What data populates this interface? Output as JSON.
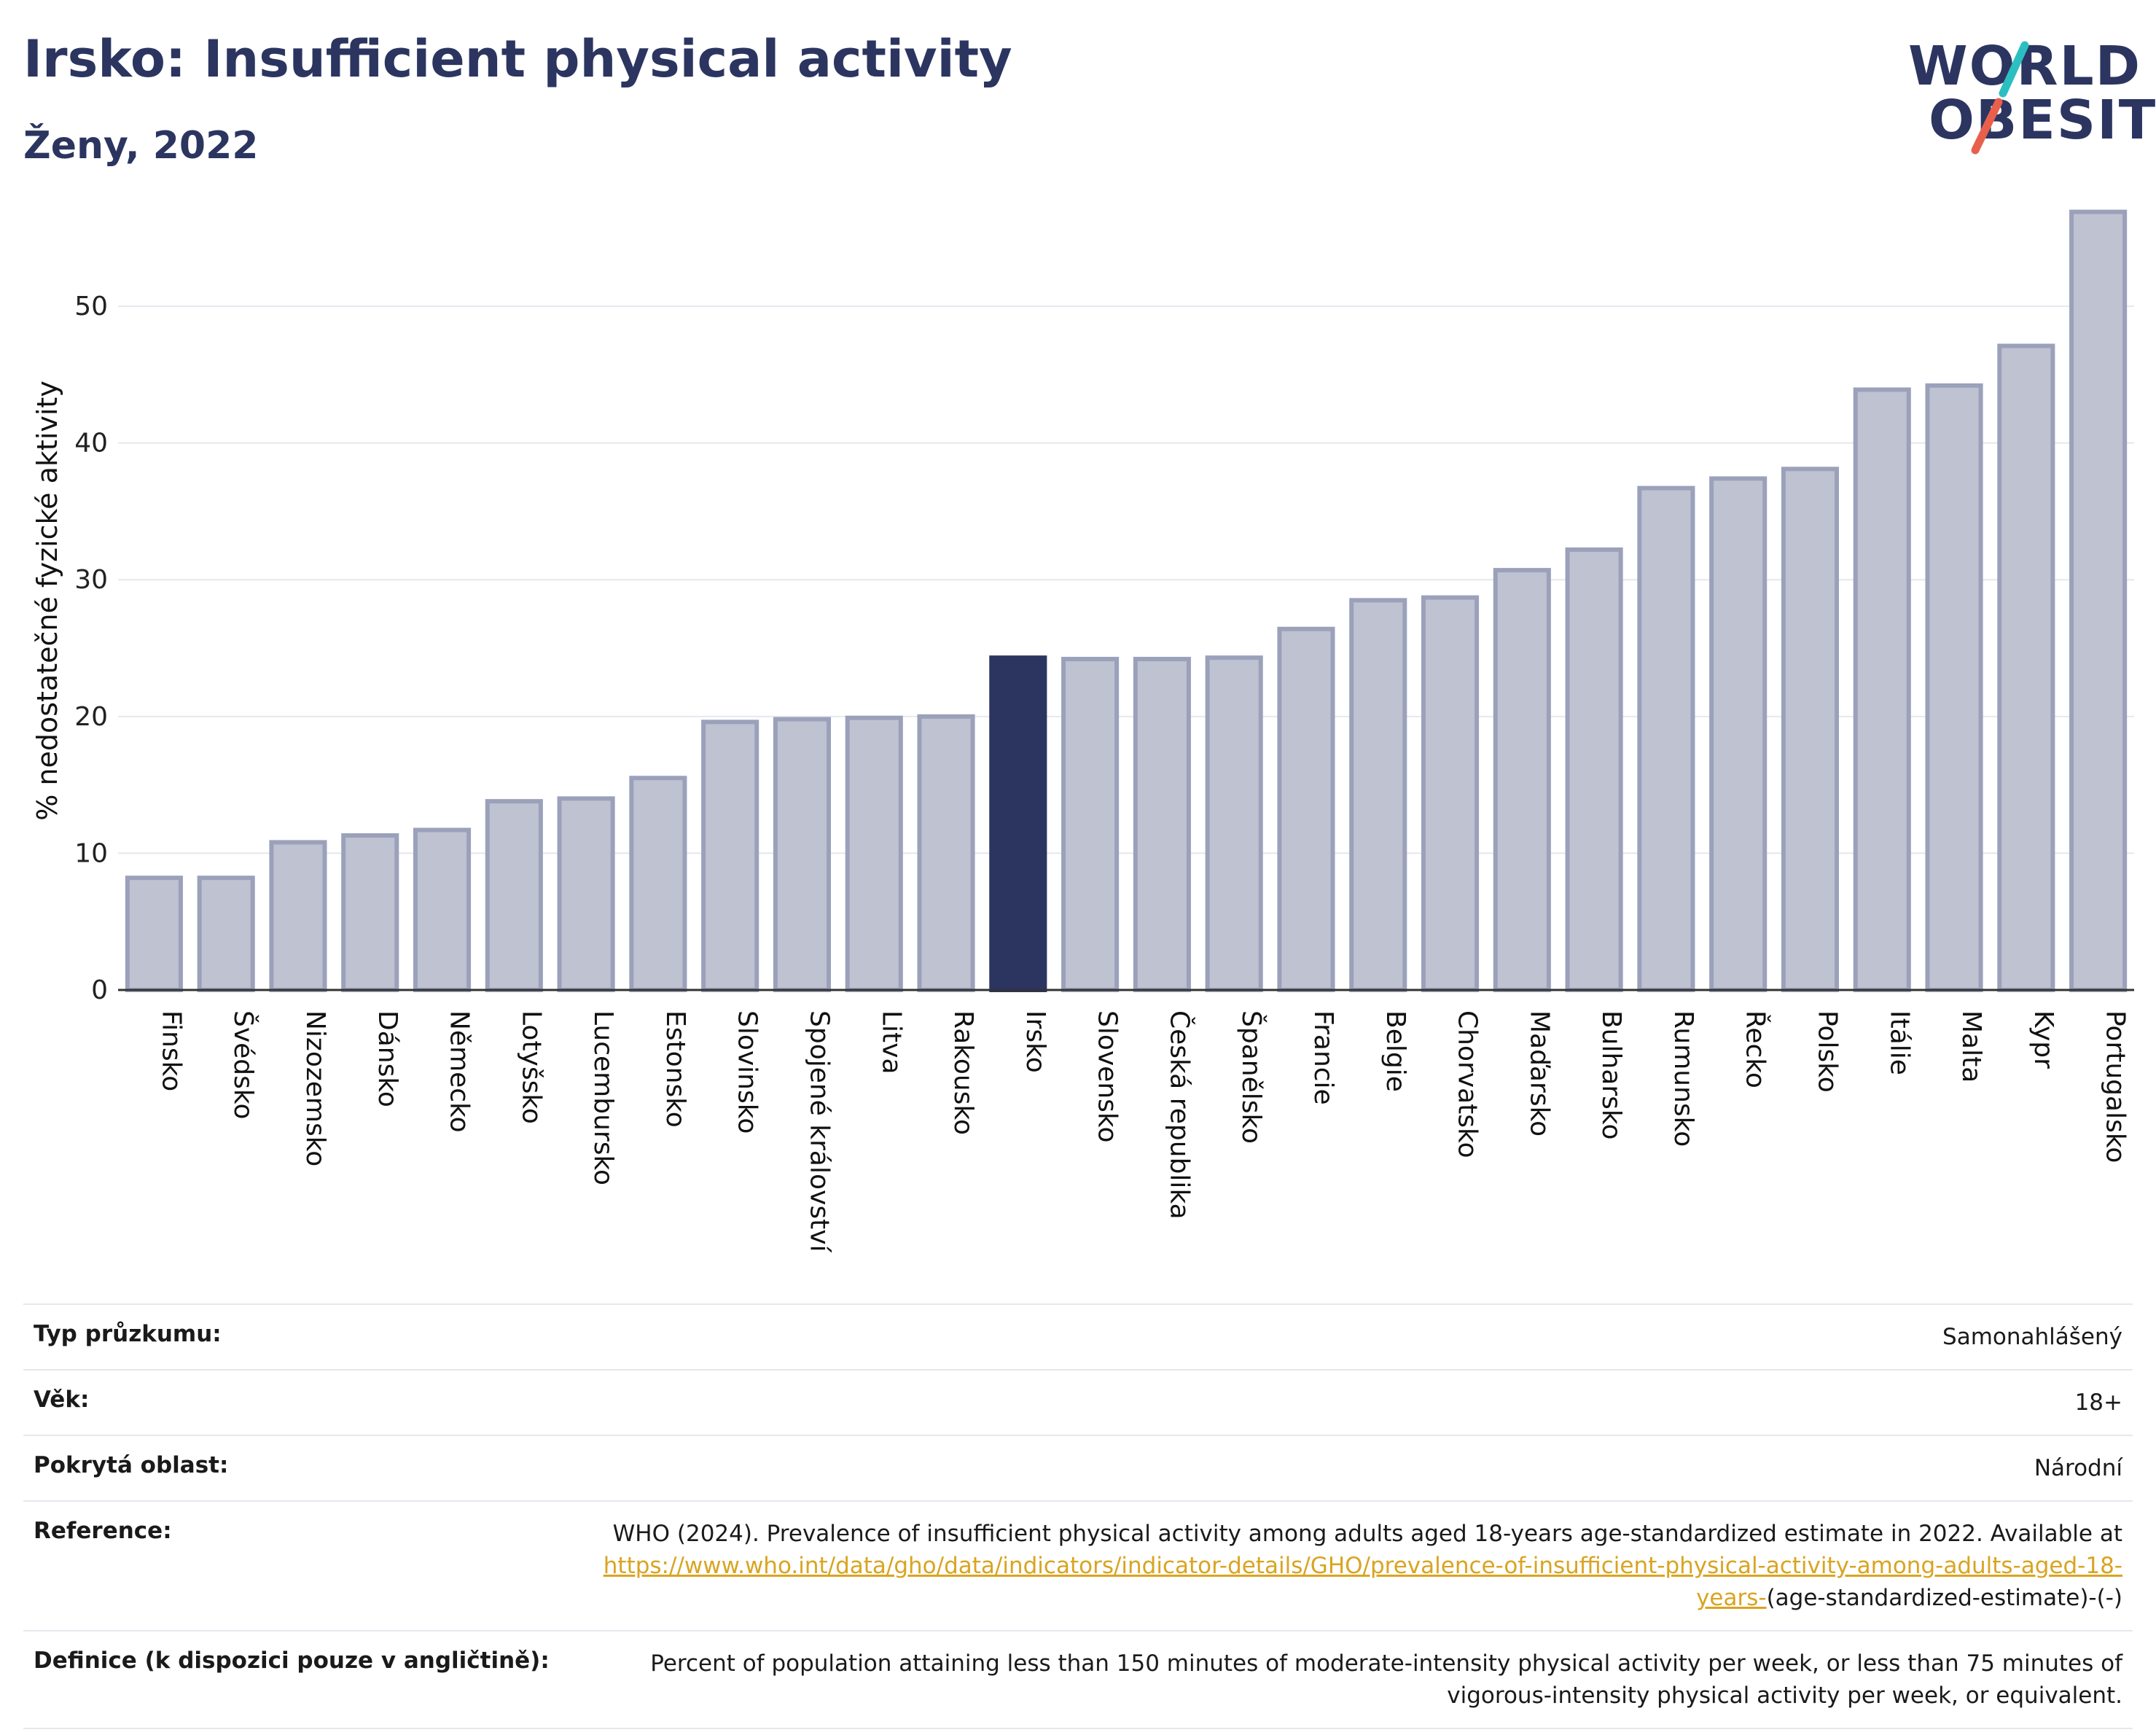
{
  "header": {
    "title": "Irsko: Insufficient physical activity",
    "subtitle": "Ženy, 2022"
  },
  "logo": {
    "line1": "WORLD",
    "line2": "OBESITY",
    "slash_colors": [
      "#2bbfc2",
      "#e8604c"
    ]
  },
  "colors": {
    "bar_default": "#bec2d1",
    "bar_border": "#9ba1ba",
    "bar_highlight": "#2b3560",
    "gridline": "#e6e8ee",
    "axis": "#333333",
    "title": "#2b3560",
    "link": "#d9a421"
  },
  "chart_data": {
    "type": "bar",
    "title": "",
    "xlabel": "",
    "ylabel": "% nedostatečné fyzické aktivity",
    "ylim": [
      0,
      58
    ],
    "yticks": [
      0,
      10,
      20,
      30,
      40,
      50
    ],
    "grid": true,
    "highlight": "Irsko",
    "categories": [
      "Finsko",
      "Švédsko",
      "Nizozemsko",
      "Dánsko",
      "Německo",
      "Lotyšsko",
      "Lucembursko",
      "Estonsko",
      "Slovinsko",
      "Spojené království",
      "Litva",
      "Rakousko",
      "Irsko",
      "Slovensko",
      "Česká republika",
      "Španělsko",
      "Francie",
      "Belgie",
      "Chorvatsko",
      "Maďarsko",
      "Bulharsko",
      "Rumunsko",
      "Řecko",
      "Polsko",
      "Itálie",
      "Malta",
      "Kypr",
      "Portugalsko"
    ],
    "values": [
      8.2,
      8.2,
      10.8,
      11.3,
      11.7,
      13.8,
      14.0,
      15.5,
      19.6,
      19.8,
      19.9,
      20.0,
      24.3,
      24.2,
      24.2,
      24.3,
      26.4,
      28.5,
      28.7,
      30.7,
      32.2,
      36.7,
      37.4,
      38.1,
      43.9,
      44.2,
      47.1,
      56.9
    ]
  },
  "info": {
    "survey_type": {
      "label": "Typ průzkumu:",
      "value": "Samonahlášený"
    },
    "age": {
      "label": "Věk:",
      "value": "18+"
    },
    "coverage": {
      "label": "Pokrytá oblast:",
      "value": "Národní"
    },
    "reference": {
      "label": "Reference:",
      "text": "WHO (2024). Prevalence of insufficient physical activity among adults aged 18-years age-standardized estimate in 2022. Available at",
      "link": "https://www.who.int/data/gho/data/indicators/indicator-details/GHO/prevalence-of-insufficient-physical-activity-among-adults-aged-18-years-",
      "suffix": "(age-standardized-estimate)-(-)"
    },
    "definition": {
      "label": "Definice (k dispozici pouze v angličtině):",
      "value": "Percent of population attaining less than 150 minutes of moderate-intensity physical activity per week, or less than 75 minutes of vigorous-intensity physical activity per week, or equivalent."
    }
  }
}
